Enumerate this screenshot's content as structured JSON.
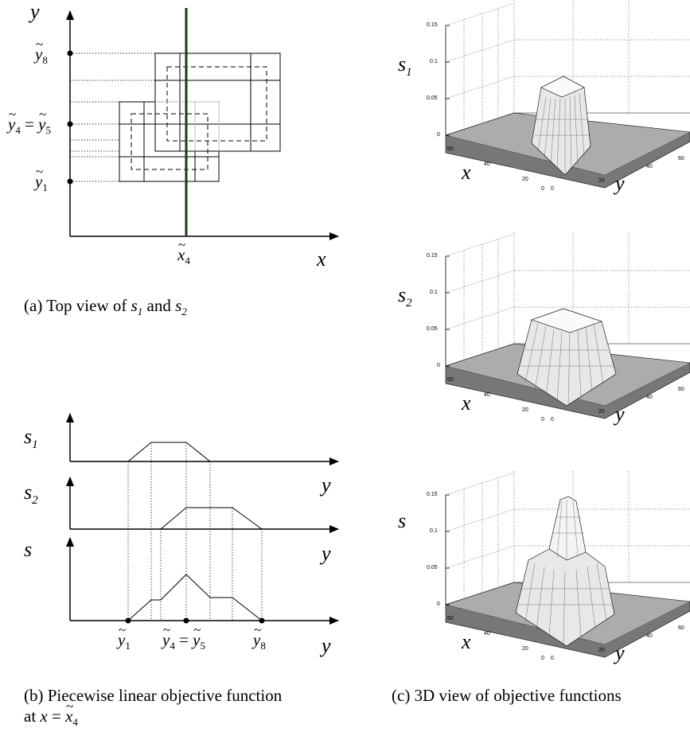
{
  "panel_a": {
    "axis_y": "y",
    "axis_x": "x",
    "ticks_y": [
      {
        "main": "y",
        "sub": "8"
      },
      {
        "main": "y",
        "sub": "4",
        "eq": " = ",
        "main2": "y",
        "sub2": "5"
      },
      {
        "main": "y",
        "sub": "1"
      }
    ],
    "tick_x": {
      "main": "x",
      "sub": "4"
    },
    "caption": {
      "prefix": "(a) Top view of ",
      "s1": "s",
      "s1_sub": "1",
      "mid": " and ",
      "s2": "s",
      "s2_sub": "2"
    }
  },
  "panel_b": {
    "plots": [
      {
        "label": "s",
        "label_sub": "1",
        "axis": "y"
      },
      {
        "label": "s",
        "label_sub": "2",
        "axis": "y"
      },
      {
        "label": "s",
        "label_sub": "",
        "axis": "y"
      }
    ],
    "ticks": [
      {
        "main": "y",
        "sub": "1"
      },
      {
        "main": "y",
        "sub": "4",
        "eq": " = ",
        "main2": "y",
        "sub2": "5"
      },
      {
        "main": "y",
        "sub": "8"
      }
    ],
    "caption_line1": "(b) Piecewise linear objective function",
    "caption_line2_prefix": "at ",
    "caption_x": "x",
    "caption_eq": " = ",
    "caption_x2": "x",
    "caption_sub": "4"
  },
  "panel_c": {
    "plots": [
      {
        "zlabel": "s",
        "zsub": "1",
        "z_ticks": [
          "0.15",
          "0.1",
          "0.05",
          "0"
        ]
      },
      {
        "zlabel": "s",
        "zsub": "2",
        "z_ticks": [
          "0.15",
          "0.1",
          "0.05",
          "0"
        ]
      },
      {
        "zlabel": "s",
        "zsub": "",
        "z_ticks": [
          "0.15",
          "0.1",
          "0.05",
          "0"
        ]
      }
    ],
    "x_label": "x",
    "y_label": "y",
    "x_ticks": [
      "60",
      "40",
      "20",
      "0"
    ],
    "y_ticks": [
      "0",
      "20",
      "40",
      "60"
    ],
    "caption": "(c) 3D view of objective functions"
  },
  "colors": {
    "vertical_line": "#1a3d14",
    "ink": "#000000",
    "light_box": "#bbbbbb"
  }
}
